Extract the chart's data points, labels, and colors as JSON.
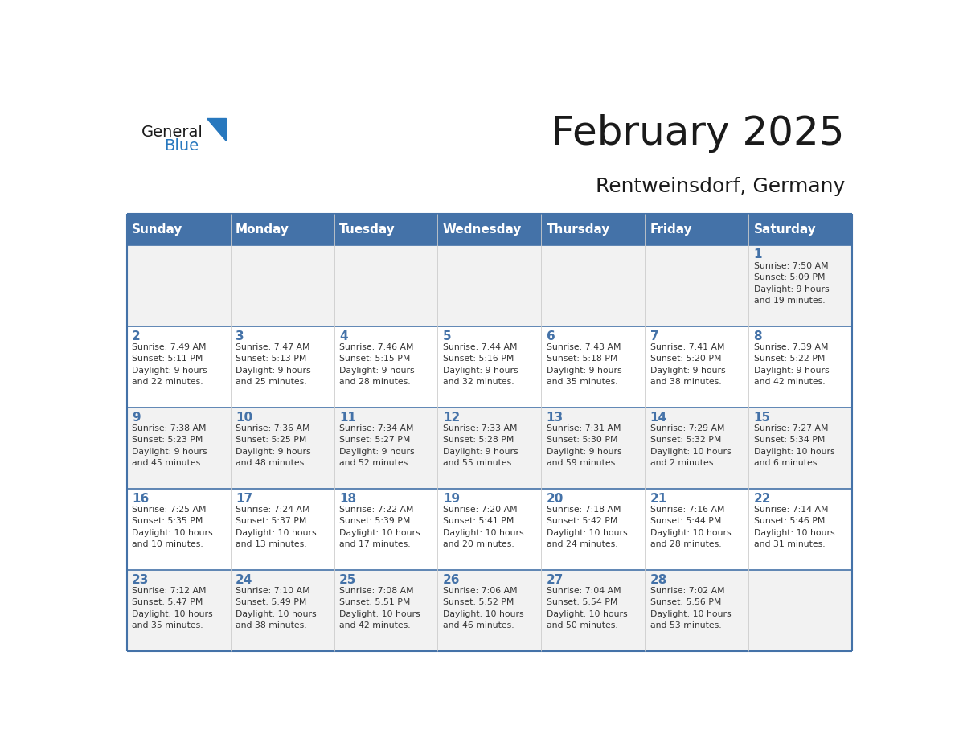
{
  "title": "February 2025",
  "subtitle": "Rentweinsdorf, Germany",
  "days_of_week": [
    "Sunday",
    "Monday",
    "Tuesday",
    "Wednesday",
    "Thursday",
    "Friday",
    "Saturday"
  ],
  "header_bg": "#4472A8",
  "header_text": "#FFFFFF",
  "row_bg_light": "#F2F2F2",
  "row_bg_white": "#FFFFFF",
  "cell_border": "#4472A8",
  "cell_border_light": "#CCCCCC",
  "text_color": "#333333",
  "title_color": "#1a1a1a",
  "day_num_color": "#4472A8",
  "calendar_data": [
    [
      null,
      null,
      null,
      null,
      null,
      null,
      {
        "day": 1,
        "sunrise": "7:50 AM",
        "sunset": "5:09 PM",
        "daylight": "9 hours\nand 19 minutes"
      }
    ],
    [
      {
        "day": 2,
        "sunrise": "7:49 AM",
        "sunset": "5:11 PM",
        "daylight": "9 hours\nand 22 minutes"
      },
      {
        "day": 3,
        "sunrise": "7:47 AM",
        "sunset": "5:13 PM",
        "daylight": "9 hours\nand 25 minutes"
      },
      {
        "day": 4,
        "sunrise": "7:46 AM",
        "sunset": "5:15 PM",
        "daylight": "9 hours\nand 28 minutes"
      },
      {
        "day": 5,
        "sunrise": "7:44 AM",
        "sunset": "5:16 PM",
        "daylight": "9 hours\nand 32 minutes"
      },
      {
        "day": 6,
        "sunrise": "7:43 AM",
        "sunset": "5:18 PM",
        "daylight": "9 hours\nand 35 minutes"
      },
      {
        "day": 7,
        "sunrise": "7:41 AM",
        "sunset": "5:20 PM",
        "daylight": "9 hours\nand 38 minutes"
      },
      {
        "day": 8,
        "sunrise": "7:39 AM",
        "sunset": "5:22 PM",
        "daylight": "9 hours\nand 42 minutes"
      }
    ],
    [
      {
        "day": 9,
        "sunrise": "7:38 AM",
        "sunset": "5:23 PM",
        "daylight": "9 hours\nand 45 minutes"
      },
      {
        "day": 10,
        "sunrise": "7:36 AM",
        "sunset": "5:25 PM",
        "daylight": "9 hours\nand 48 minutes"
      },
      {
        "day": 11,
        "sunrise": "7:34 AM",
        "sunset": "5:27 PM",
        "daylight": "9 hours\nand 52 minutes"
      },
      {
        "day": 12,
        "sunrise": "7:33 AM",
        "sunset": "5:28 PM",
        "daylight": "9 hours\nand 55 minutes"
      },
      {
        "day": 13,
        "sunrise": "7:31 AM",
        "sunset": "5:30 PM",
        "daylight": "9 hours\nand 59 minutes"
      },
      {
        "day": 14,
        "sunrise": "7:29 AM",
        "sunset": "5:32 PM",
        "daylight": "10 hours\nand 2 minutes"
      },
      {
        "day": 15,
        "sunrise": "7:27 AM",
        "sunset": "5:34 PM",
        "daylight": "10 hours\nand 6 minutes"
      }
    ],
    [
      {
        "day": 16,
        "sunrise": "7:25 AM",
        "sunset": "5:35 PM",
        "daylight": "10 hours\nand 10 minutes"
      },
      {
        "day": 17,
        "sunrise": "7:24 AM",
        "sunset": "5:37 PM",
        "daylight": "10 hours\nand 13 minutes"
      },
      {
        "day": 18,
        "sunrise": "7:22 AM",
        "sunset": "5:39 PM",
        "daylight": "10 hours\nand 17 minutes"
      },
      {
        "day": 19,
        "sunrise": "7:20 AM",
        "sunset": "5:41 PM",
        "daylight": "10 hours\nand 20 minutes"
      },
      {
        "day": 20,
        "sunrise": "7:18 AM",
        "sunset": "5:42 PM",
        "daylight": "10 hours\nand 24 minutes"
      },
      {
        "day": 21,
        "sunrise": "7:16 AM",
        "sunset": "5:44 PM",
        "daylight": "10 hours\nand 28 minutes"
      },
      {
        "day": 22,
        "sunrise": "7:14 AM",
        "sunset": "5:46 PM",
        "daylight": "10 hours\nand 31 minutes"
      }
    ],
    [
      {
        "day": 23,
        "sunrise": "7:12 AM",
        "sunset": "5:47 PM",
        "daylight": "10 hours\nand 35 minutes"
      },
      {
        "day": 24,
        "sunrise": "7:10 AM",
        "sunset": "5:49 PM",
        "daylight": "10 hours\nand 38 minutes"
      },
      {
        "day": 25,
        "sunrise": "7:08 AM",
        "sunset": "5:51 PM",
        "daylight": "10 hours\nand 42 minutes"
      },
      {
        "day": 26,
        "sunrise": "7:06 AM",
        "sunset": "5:52 PM",
        "daylight": "10 hours\nand 46 minutes"
      },
      {
        "day": 27,
        "sunrise": "7:04 AM",
        "sunset": "5:54 PM",
        "daylight": "10 hours\nand 50 minutes"
      },
      {
        "day": 28,
        "sunrise": "7:02 AM",
        "sunset": "5:56 PM",
        "daylight": "10 hours\nand 53 minutes"
      },
      null
    ]
  ],
  "logo_general_color": "#1a1a1a",
  "logo_blue_color": "#2878BE",
  "logo_triangle_color": "#2878BE"
}
